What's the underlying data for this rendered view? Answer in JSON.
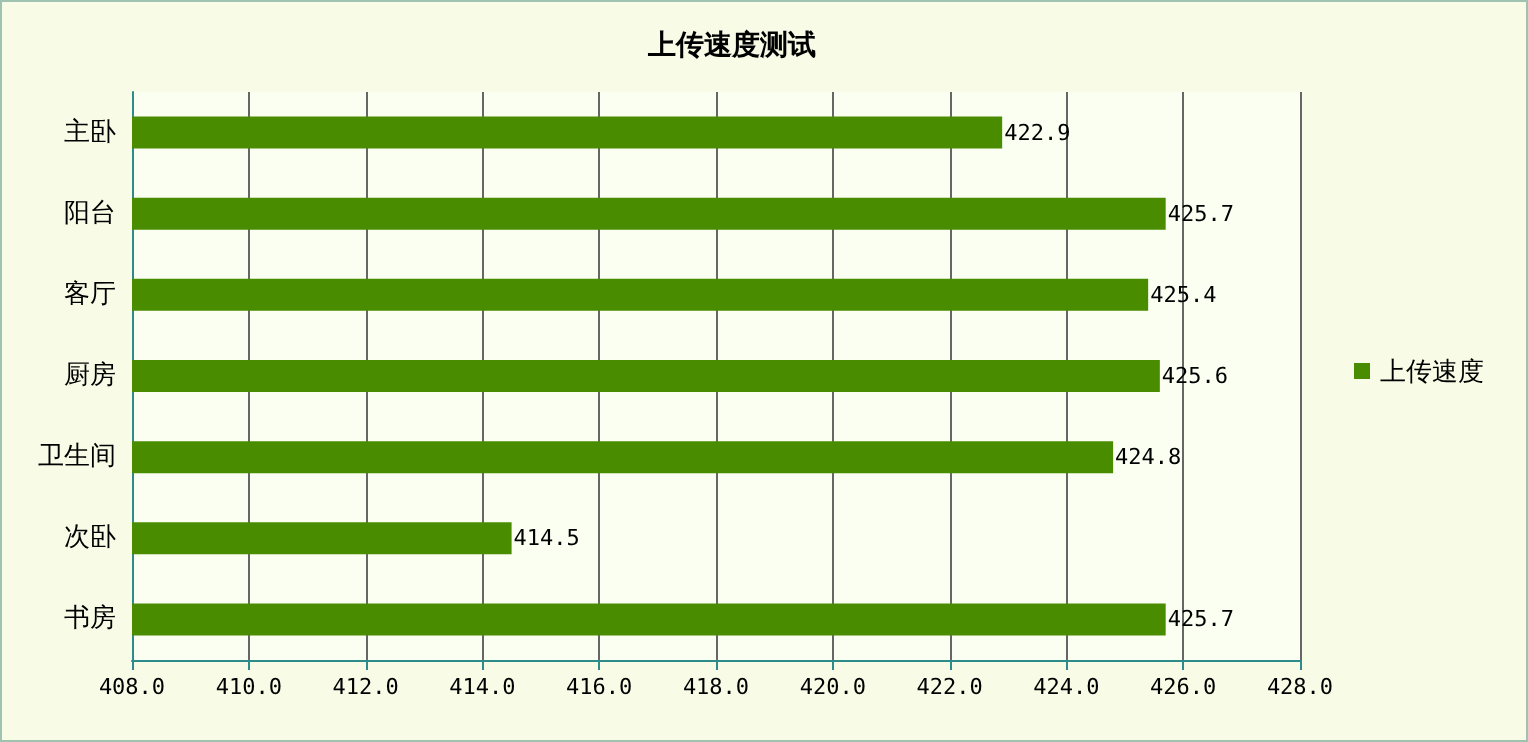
{
  "chart_data": {
    "type": "bar",
    "title": "上传速度测试",
    "orientation": "horizontal",
    "categories": [
      "主卧",
      "阳台",
      "客厅",
      "厨房",
      "卫生间",
      "次卧",
      "书房"
    ],
    "series": [
      {
        "name": "上传速度",
        "color": "#4a8c00",
        "values": [
          422.9,
          425.7,
          425.4,
          425.6,
          424.8,
          414.5,
          425.7
        ]
      }
    ],
    "xlim": [
      408,
      428
    ],
    "xticks": [
      {
        "value": 408,
        "label": "408.0"
      },
      {
        "value": 410,
        "label": "410.0"
      },
      {
        "value": 412,
        "label": "412.0"
      },
      {
        "value": 414,
        "label": "414.0"
      },
      {
        "value": 416,
        "label": "416.0"
      },
      {
        "value": 418,
        "label": "418.0"
      },
      {
        "value": 420,
        "label": "420.0"
      },
      {
        "value": 422,
        "label": "422.0"
      },
      {
        "value": 424,
        "label": "424.0"
      },
      {
        "value": 426,
        "label": "426.0"
      },
      {
        "value": 428,
        "label": "428.0"
      }
    ],
    "grid": "x",
    "legend": "right",
    "data_labels": true
  }
}
